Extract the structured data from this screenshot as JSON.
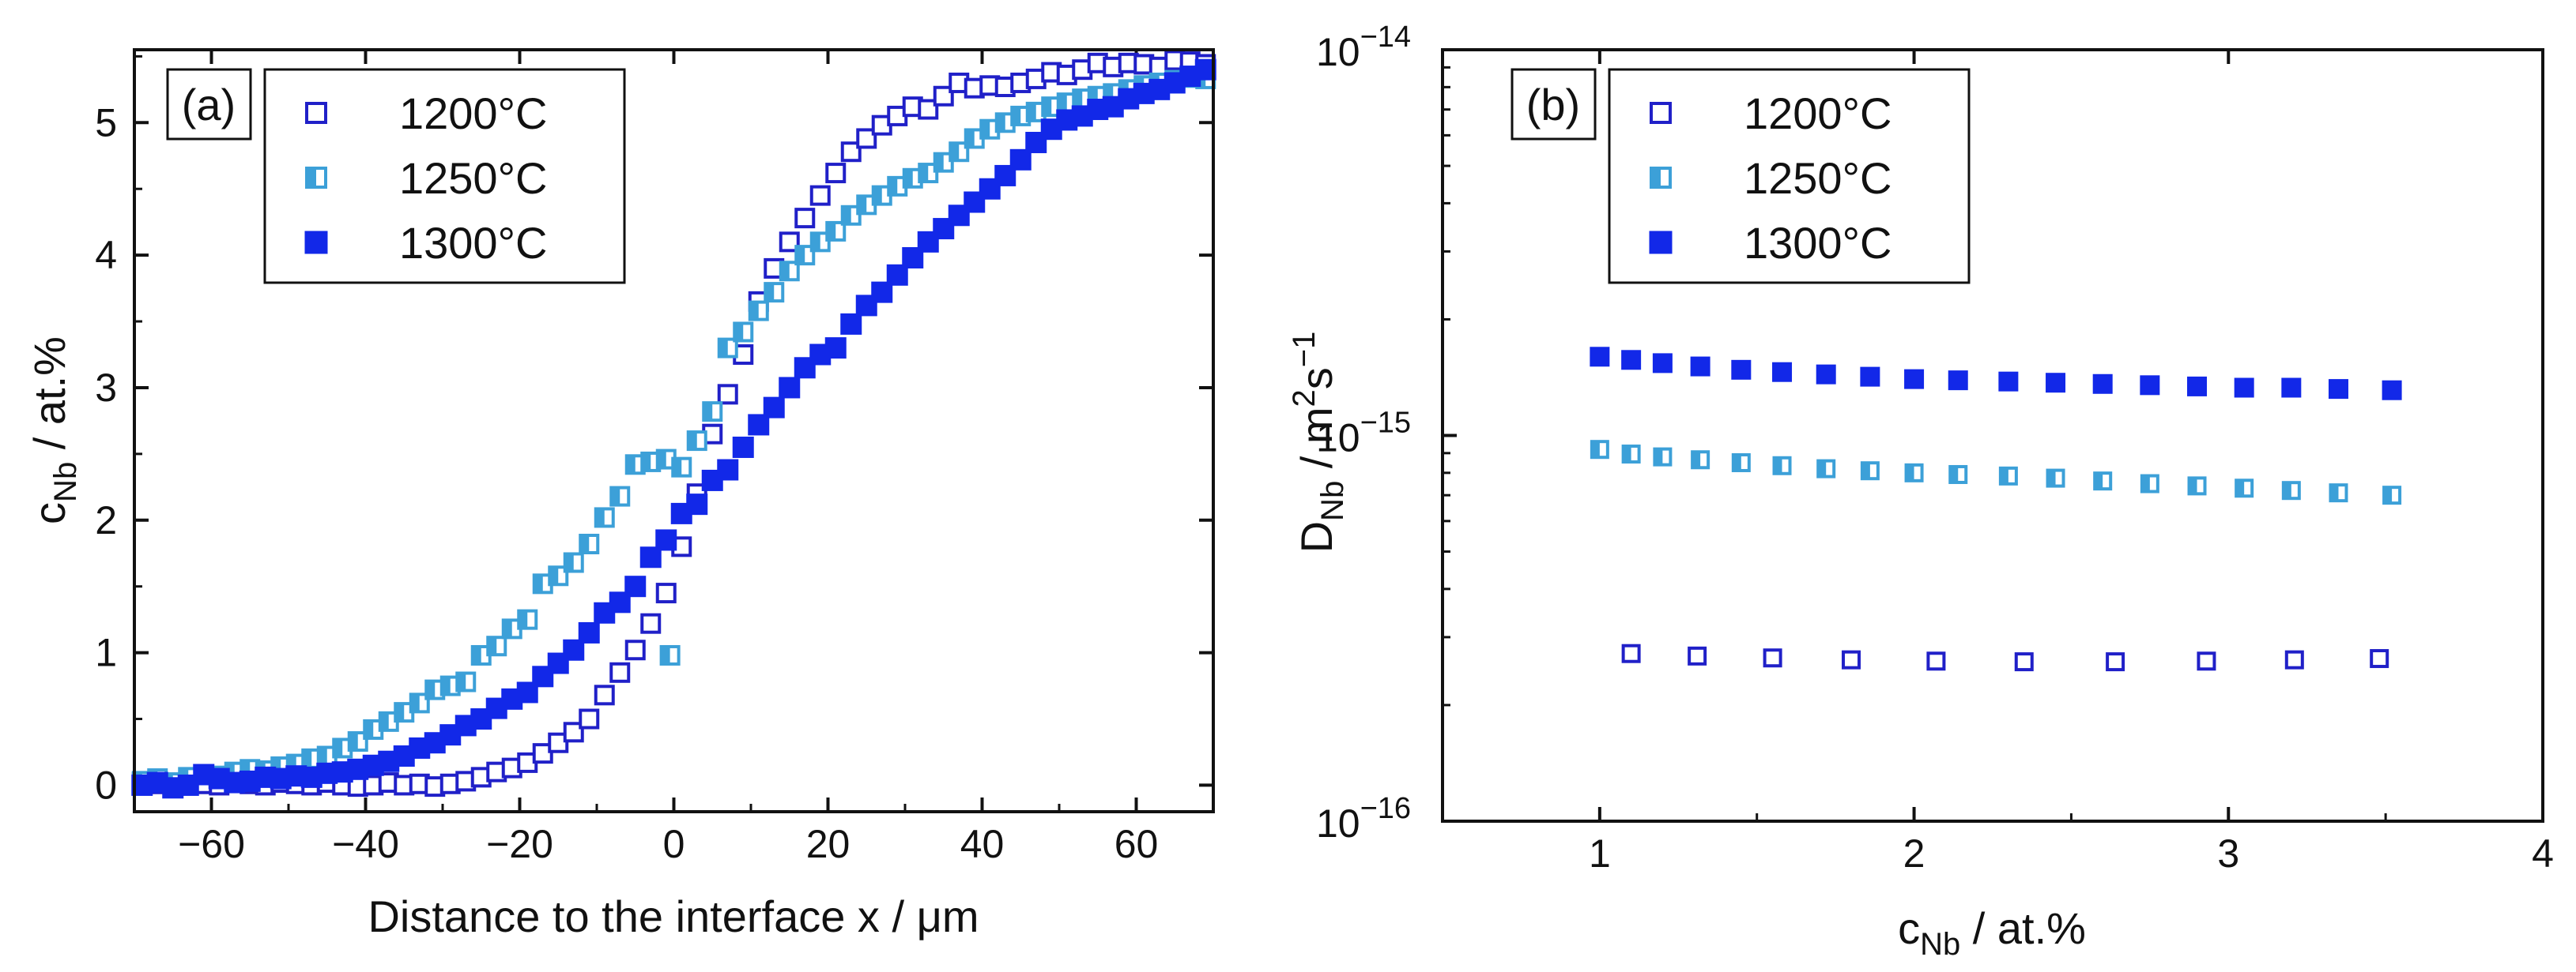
{
  "chart_data": [
    {
      "type": "scatter",
      "panel_label": "(a)",
      "xlabel": "Distance to the interface x / μm",
      "ylabel_main": "c",
      "ylabel_sub": "Nb",
      "ylabel_rest": " / at.%",
      "xlim": [
        -70,
        70
      ],
      "ylim": [
        -0.2,
        5.55
      ],
      "x_ticks": [
        -60,
        -40,
        -20,
        0,
        20,
        40,
        60
      ],
      "x_tick_labels": [
        "−60",
        "−40",
        "−20",
        "0",
        "20",
        "40",
        "60"
      ],
      "y_ticks": [
        0,
        1,
        2,
        3,
        4,
        5
      ],
      "y_tick_labels": [
        "0",
        "1",
        "2",
        "3",
        "4",
        "5"
      ],
      "legend_position": "top-left",
      "series": [
        {
          "name": "1200°C",
          "marker": "open-square",
          "color": "#2020c8",
          "points": [
            [
              -69,
              0.02
            ],
            [
              -67,
              0.01
            ],
            [
              -65,
              0.0
            ],
            [
              -63,
              0.02
            ],
            [
              -61,
              0.01
            ],
            [
              -59,
              0.0
            ],
            [
              -57,
              0.02
            ],
            [
              -55,
              0.01
            ],
            [
              -53,
              0.0
            ],
            [
              -51,
              0.02
            ],
            [
              -49,
              0.01
            ],
            [
              -47,
              0.0
            ],
            [
              -45,
              0.02
            ],
            [
              -43,
              0.0
            ],
            [
              -41,
              -0.01
            ],
            [
              -39,
              0.0
            ],
            [
              -37,
              0.02
            ],
            [
              -35,
              0.0
            ],
            [
              -33,
              0.01
            ],
            [
              -31,
              -0.01
            ],
            [
              -29,
              0.01
            ],
            [
              -27,
              0.03
            ],
            [
              -25,
              0.06
            ],
            [
              -23,
              0.1
            ],
            [
              -21,
              0.13
            ],
            [
              -19,
              0.17
            ],
            [
              -17,
              0.24
            ],
            [
              -15,
              0.32
            ],
            [
              -13,
              0.4
            ],
            [
              -11,
              0.5
            ],
            [
              -9,
              0.68
            ],
            [
              -7,
              0.85
            ],
            [
              -5,
              1.02
            ],
            [
              -3,
              1.22
            ],
            [
              -1,
              1.45
            ],
            [
              1,
              1.8
            ],
            [
              3,
              2.2
            ],
            [
              5,
              2.65
            ],
            [
              7,
              2.95
            ],
            [
              9,
              3.25
            ],
            [
              11,
              3.65
            ],
            [
              13,
              3.9
            ],
            [
              15,
              4.1
            ],
            [
              17,
              4.28
            ],
            [
              19,
              4.45
            ],
            [
              21,
              4.62
            ],
            [
              23,
              4.78
            ],
            [
              25,
              4.88
            ],
            [
              27,
              4.98
            ],
            [
              29,
              5.05
            ],
            [
              31,
              5.12
            ],
            [
              33,
              5.1
            ],
            [
              35,
              5.2
            ],
            [
              37,
              5.3
            ],
            [
              39,
              5.26
            ],
            [
              41,
              5.28
            ],
            [
              43,
              5.27
            ],
            [
              45,
              5.3
            ],
            [
              47,
              5.33
            ],
            [
              49,
              5.38
            ],
            [
              51,
              5.36
            ],
            [
              53,
              5.4
            ],
            [
              55,
              5.45
            ],
            [
              57,
              5.42
            ],
            [
              59,
              5.45
            ],
            [
              61,
              5.44
            ],
            [
              63,
              5.42
            ],
            [
              65,
              5.47
            ],
            [
              67,
              5.46
            ],
            [
              69,
              5.44
            ]
          ]
        },
        {
          "name": "1250°C",
          "marker": "half-filled-square",
          "color": "#3ca0d8",
          "points": [
            [
              -69,
              0.03
            ],
            [
              -67,
              0.05
            ],
            [
              -65,
              0.02
            ],
            [
              -63,
              0.06
            ],
            [
              -61,
              0.08
            ],
            [
              -59,
              0.07
            ],
            [
              -57,
              0.1
            ],
            [
              -55,
              0.12
            ],
            [
              -53,
              0.11
            ],
            [
              -51,
              0.14
            ],
            [
              -49,
              0.16
            ],
            [
              -47,
              0.2
            ],
            [
              -45,
              0.22
            ],
            [
              -43,
              0.28
            ],
            [
              -41,
              0.33
            ],
            [
              -39,
              0.42
            ],
            [
              -37,
              0.48
            ],
            [
              -35,
              0.55
            ],
            [
              -33,
              0.62
            ],
            [
              -31,
              0.72
            ],
            [
              -29,
              0.75
            ],
            [
              -27,
              0.78
            ],
            [
              -25,
              0.98
            ],
            [
              -23,
              1.05
            ],
            [
              -21,
              1.18
            ],
            [
              -19,
              1.25
            ],
            [
              -17,
              1.52
            ],
            [
              -15,
              1.58
            ],
            [
              -13,
              1.68
            ],
            [
              -11,
              1.82
            ],
            [
              -9,
              2.02
            ],
            [
              -7,
              2.18
            ],
            [
              -5,
              2.42
            ],
            [
              -3,
              2.44
            ],
            [
              -1,
              2.46
            ],
            [
              1,
              2.4
            ],
            [
              3,
              2.6
            ],
            [
              5,
              2.82
            ],
            [
              7,
              3.3
            ],
            [
              9,
              3.42
            ],
            [
              11,
              3.58
            ],
            [
              13,
              3.72
            ],
            [
              15,
              3.88
            ],
            [
              17,
              4.0
            ],
            [
              19,
              4.1
            ],
            [
              21,
              4.18
            ],
            [
              23,
              4.3
            ],
            [
              25,
              4.38
            ],
            [
              27,
              4.45
            ],
            [
              29,
              4.52
            ],
            [
              31,
              4.58
            ],
            [
              33,
              4.62
            ],
            [
              35,
              4.7
            ],
            [
              37,
              4.78
            ],
            [
              39,
              4.88
            ],
            [
              41,
              4.95
            ],
            [
              43,
              5.0
            ],
            [
              45,
              5.05
            ],
            [
              47,
              5.08
            ],
            [
              49,
              5.12
            ],
            [
              51,
              5.15
            ],
            [
              53,
              5.18
            ],
            [
              55,
              5.2
            ],
            [
              57,
              5.22
            ],
            [
              59,
              5.25
            ],
            [
              61,
              5.28
            ],
            [
              63,
              5.3
            ],
            [
              65,
              5.32
            ],
            [
              67,
              5.34
            ],
            [
              69,
              5.33
            ],
            [
              -0.5,
              0.98
            ]
          ]
        },
        {
          "name": "1300°C",
          "marker": "filled-square",
          "color": "#1228e8",
          "points": [
            [
              -69,
              0.0
            ],
            [
              -67,
              0.02
            ],
            [
              -65,
              -0.02
            ],
            [
              -63,
              0.0
            ],
            [
              -61,
              0.08
            ],
            [
              -59,
              0.05
            ],
            [
              -57,
              0.02
            ],
            [
              -55,
              0.03
            ],
            [
              -53,
              0.06
            ],
            [
              -51,
              0.05
            ],
            [
              -49,
              0.07
            ],
            [
              -47,
              0.06
            ],
            [
              -45,
              0.09
            ],
            [
              -43,
              0.1
            ],
            [
              -41,
              0.12
            ],
            [
              -39,
              0.15
            ],
            [
              -37,
              0.18
            ],
            [
              -35,
              0.22
            ],
            [
              -33,
              0.28
            ],
            [
              -31,
              0.32
            ],
            [
              -29,
              0.38
            ],
            [
              -27,
              0.45
            ],
            [
              -25,
              0.5
            ],
            [
              -23,
              0.58
            ],
            [
              -21,
              0.65
            ],
            [
              -19,
              0.7
            ],
            [
              -17,
              0.82
            ],
            [
              -15,
              0.92
            ],
            [
              -13,
              1.02
            ],
            [
              -11,
              1.15
            ],
            [
              -9,
              1.3
            ],
            [
              -7,
              1.38
            ],
            [
              -5,
              1.5
            ],
            [
              -3,
              1.72
            ],
            [
              -1,
              1.85
            ],
            [
              1,
              2.05
            ],
            [
              3,
              2.12
            ],
            [
              5,
              2.3
            ],
            [
              7,
              2.38
            ],
            [
              9,
              2.55
            ],
            [
              11,
              2.72
            ],
            [
              13,
              2.85
            ],
            [
              15,
              3.0
            ],
            [
              17,
              3.15
            ],
            [
              19,
              3.25
            ],
            [
              21,
              3.3
            ],
            [
              23,
              3.48
            ],
            [
              25,
              3.62
            ],
            [
              27,
              3.72
            ],
            [
              29,
              3.85
            ],
            [
              31,
              3.98
            ],
            [
              33,
              4.1
            ],
            [
              35,
              4.2
            ],
            [
              37,
              4.3
            ],
            [
              39,
              4.4
            ],
            [
              41,
              4.5
            ],
            [
              43,
              4.6
            ],
            [
              45,
              4.72
            ],
            [
              47,
              4.85
            ],
            [
              49,
              4.95
            ],
            [
              51,
              5.02
            ],
            [
              53,
              5.05
            ],
            [
              55,
              5.1
            ],
            [
              57,
              5.12
            ],
            [
              59,
              5.18
            ],
            [
              61,
              5.22
            ],
            [
              63,
              5.25
            ],
            [
              65,
              5.3
            ],
            [
              67,
              5.35
            ],
            [
              69,
              5.4
            ]
          ]
        }
      ]
    },
    {
      "type": "scatter",
      "panel_label": "(b)",
      "xlabel_main": "c",
      "xlabel_sub": "Nb",
      "xlabel_rest": " / at.%",
      "ylabel_main": "D",
      "ylabel_sub": "Nb",
      "ylabel_mid": " / m",
      "ylabel_sup1": "2",
      "ylabel_s": "s",
      "ylabel_sup2": "−1",
      "y_scale": "log",
      "xlim": [
        0.5,
        4.0
      ],
      "ylim": [
        1e-16,
        1e-14
      ],
      "x_ticks": [
        1,
        2,
        3,
        4
      ],
      "x_tick_labels": [
        "1",
        "2",
        "3",
        "4"
      ],
      "y_ticks": [
        1e-16,
        1e-15,
        1e-14
      ],
      "y_tick_base": "10",
      "y_tick_exponents": [
        "−16",
        "−15",
        "−14"
      ],
      "legend_position": "top-left",
      "series": [
        {
          "name": "1200°C",
          "marker": "open-square",
          "color": "#2020c8",
          "points": [
            [
              1.1,
              2.72e-16
            ],
            [
              1.31,
              2.68e-16
            ],
            [
              1.55,
              2.65e-16
            ],
            [
              1.8,
              2.62e-16
            ],
            [
              2.07,
              2.6e-16
            ],
            [
              2.35,
              2.59e-16
            ],
            [
              2.64,
              2.59e-16
            ],
            [
              2.93,
              2.6e-16
            ],
            [
              3.21,
              2.62e-16
            ],
            [
              3.48,
              2.64e-16
            ]
          ]
        },
        {
          "name": "1250°C",
          "marker": "half-filled-square",
          "color": "#3ca0d8",
          "points": [
            [
              1.0,
              9.2e-16
            ],
            [
              1.1,
              8.95e-16
            ],
            [
              1.2,
              8.8e-16
            ],
            [
              1.32,
              8.65e-16
            ],
            [
              1.45,
              8.5e-16
            ],
            [
              1.58,
              8.35e-16
            ],
            [
              1.72,
              8.2e-16
            ],
            [
              1.86,
              8.1e-16
            ],
            [
              2.0,
              8e-16
            ],
            [
              2.14,
              7.92e-16
            ],
            [
              2.3,
              7.85e-16
            ],
            [
              2.45,
              7.75e-16
            ],
            [
              2.6,
              7.62e-16
            ],
            [
              2.75,
              7.5e-16
            ],
            [
              2.9,
              7.4e-16
            ],
            [
              3.05,
              7.3e-16
            ],
            [
              3.2,
              7.2e-16
            ],
            [
              3.35,
              7.1e-16
            ],
            [
              3.52,
              7e-16
            ]
          ]
        },
        {
          "name": "1300°C",
          "marker": "filled-square",
          "color": "#1228e8",
          "points": [
            [
              1.0,
              1.6e-15
            ],
            [
              1.1,
              1.57e-15
            ],
            [
              1.2,
              1.54e-15
            ],
            [
              1.32,
              1.51e-15
            ],
            [
              1.45,
              1.48e-15
            ],
            [
              1.58,
              1.46e-15
            ],
            [
              1.72,
              1.44e-15
            ],
            [
              1.86,
              1.42e-15
            ],
            [
              2.0,
              1.4e-15
            ],
            [
              2.14,
              1.39e-15
            ],
            [
              2.3,
              1.38e-15
            ],
            [
              2.45,
              1.37e-15
            ],
            [
              2.6,
              1.36e-15
            ],
            [
              2.75,
              1.35e-15
            ],
            [
              2.9,
              1.34e-15
            ],
            [
              3.05,
              1.33e-15
            ],
            [
              3.2,
              1.33e-15
            ],
            [
              3.35,
              1.32e-15
            ],
            [
              3.52,
              1.31e-15
            ]
          ]
        }
      ]
    }
  ]
}
